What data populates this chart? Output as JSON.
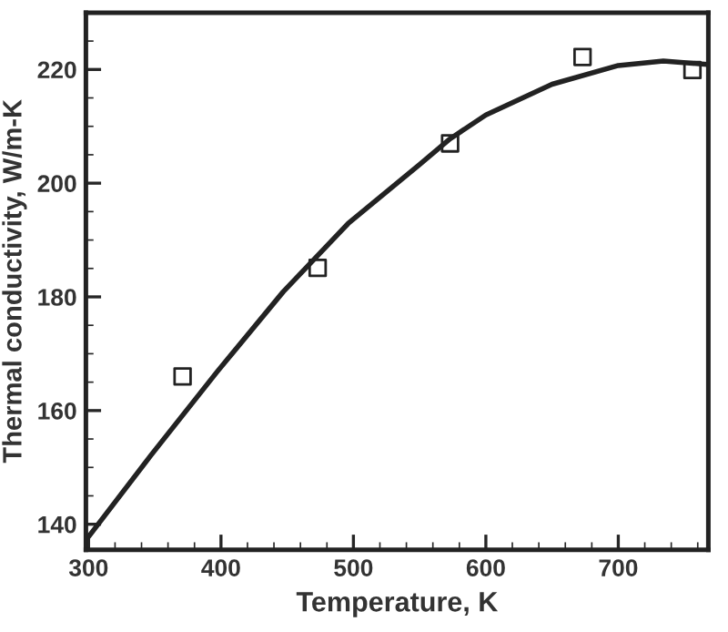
{
  "chart_data": {
    "type": "line",
    "xlabel": "Temperature, K",
    "ylabel": "Thermal conductivity, W/m-K",
    "xlim": [
      298,
      768
    ],
    "ylim": [
      135.5,
      230
    ],
    "xticks": [
      300,
      400,
      500,
      600,
      700
    ],
    "yticks": [
      140,
      160,
      180,
      200,
      220
    ],
    "grid": false,
    "series": [
      {
        "color": "#222222",
        "marker": "none",
        "line_style": "solid",
        "x": [
          300,
          347,
          397,
          447,
          496,
          550,
          573,
          600,
          650,
          700,
          734,
          767
        ],
        "values": [
          137.8,
          152.1,
          166.8,
          180.9,
          192.9,
          203.3,
          207.8,
          212,
          217.4,
          220.7,
          221.5,
          220.9
        ]
      },
      {
        "type": "scatter",
        "color": "#222222",
        "marker": "square",
        "x": [
          371,
          473,
          573,
          673,
          756
        ],
        "values": [
          166,
          185.1,
          207,
          222.2,
          219.9
        ]
      }
    ]
  }
}
